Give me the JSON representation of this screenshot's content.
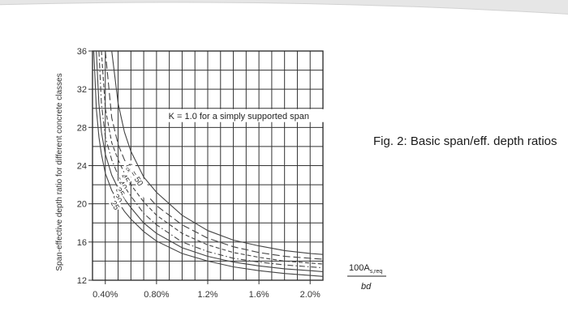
{
  "caption": "Fig. 2: Basic span/eff. depth ratios",
  "chart_data": {
    "type": "line",
    "title": "",
    "ylabel": "Span-effective depth ratio for different concrete classes",
    "xlabel_numerator": "100A",
    "xlabel_subscript": "s,req",
    "xlabel_denominator": "bd",
    "xlim": [
      0.3,
      2.1
    ],
    "ylim": [
      12,
      36
    ],
    "xticks": [
      0.4,
      0.8,
      1.2,
      1.6,
      2.0
    ],
    "xtick_labels": [
      "0.40%",
      "0.80%",
      "1.2%",
      "1.6%",
      "2.0%"
    ],
    "yticks": [
      12,
      16,
      20,
      24,
      28,
      32,
      36
    ],
    "ytick_labels": [
      "12",
      "16",
      "20",
      "24",
      "28",
      "32",
      "36"
    ],
    "grid": true,
    "annotation": "K = 1.0 for a simply supported span",
    "curve_label_prefix": "f",
    "curve_label_subscript": "ck",
    "curve_label_value": "= 50",
    "series": [
      {
        "name": "50",
        "dash": "solid",
        "x": [
          0.45,
          0.5,
          0.55,
          0.6,
          0.7,
          0.8,
          1.0,
          1.2,
          1.4,
          1.6,
          1.8,
          2.0,
          2.1
        ],
        "y": [
          36,
          30.5,
          27.5,
          25.5,
          22.8,
          21.2,
          18.8,
          17.2,
          16.2,
          15.6,
          15.1,
          14.8,
          14.7
        ]
      },
      {
        "name": "45",
        "dash": "long-dash",
        "x": [
          0.4,
          0.45,
          0.5,
          0.55,
          0.6,
          0.7,
          0.8,
          1.0,
          1.2,
          1.4,
          1.6,
          1.8,
          2.0,
          2.1
        ],
        "y": [
          36,
          29.0,
          26.2,
          24.6,
          23.4,
          21.3,
          19.8,
          17.8,
          16.4,
          15.5,
          14.9,
          14.5,
          14.3,
          14.2
        ]
      },
      {
        "name": "40",
        "dash": "dash",
        "x": [
          0.37,
          0.4,
          0.45,
          0.5,
          0.55,
          0.6,
          0.7,
          0.8,
          1.0,
          1.2,
          1.4,
          1.6,
          1.8,
          2.0,
          2.1
        ],
        "y": [
          36,
          30.0,
          26.4,
          24.6,
          23.2,
          22.0,
          20.2,
          18.8,
          16.9,
          15.7,
          14.9,
          14.4,
          14.0,
          13.8,
          13.7
        ]
      },
      {
        "name": "35",
        "dash": "dash-dot",
        "x": [
          0.35,
          0.37,
          0.4,
          0.45,
          0.5,
          0.55,
          0.6,
          0.7,
          0.8,
          1.0,
          1.2,
          1.4,
          1.6,
          1.8,
          2.0,
          2.1
        ],
        "y": [
          36,
          30.5,
          27.0,
          24.6,
          23.0,
          21.8,
          20.8,
          19.0,
          17.8,
          16.0,
          15.0,
          14.3,
          13.9,
          13.6,
          13.4,
          13.3
        ]
      },
      {
        "name": "30",
        "dash": "solid",
        "x": [
          0.33,
          0.35,
          0.37,
          0.4,
          0.45,
          0.5,
          0.55,
          0.6,
          0.7,
          0.8,
          1.0,
          1.2,
          1.4,
          1.6,
          1.8,
          2.0,
          2.1
        ],
        "y": [
          36,
          30.5,
          27.5,
          25.2,
          23.0,
          21.6,
          20.5,
          19.6,
          18.0,
          16.9,
          15.4,
          14.5,
          13.9,
          13.5,
          13.2,
          13.0,
          12.9
        ]
      },
      {
        "name": "25",
        "dash": "solid",
        "x": [
          0.31,
          0.33,
          0.35,
          0.37,
          0.4,
          0.45,
          0.5,
          0.55,
          0.6,
          0.7,
          0.8,
          1.0,
          1.2,
          1.4,
          1.6,
          1.8,
          2.0,
          2.1
        ],
        "y": [
          36,
          30.0,
          27.0,
          25.2,
          23.2,
          21.4,
          20.2,
          19.2,
          18.4,
          17.1,
          16.1,
          14.8,
          14.0,
          13.4,
          13.0,
          12.7,
          12.5,
          12.4
        ]
      }
    ]
  }
}
